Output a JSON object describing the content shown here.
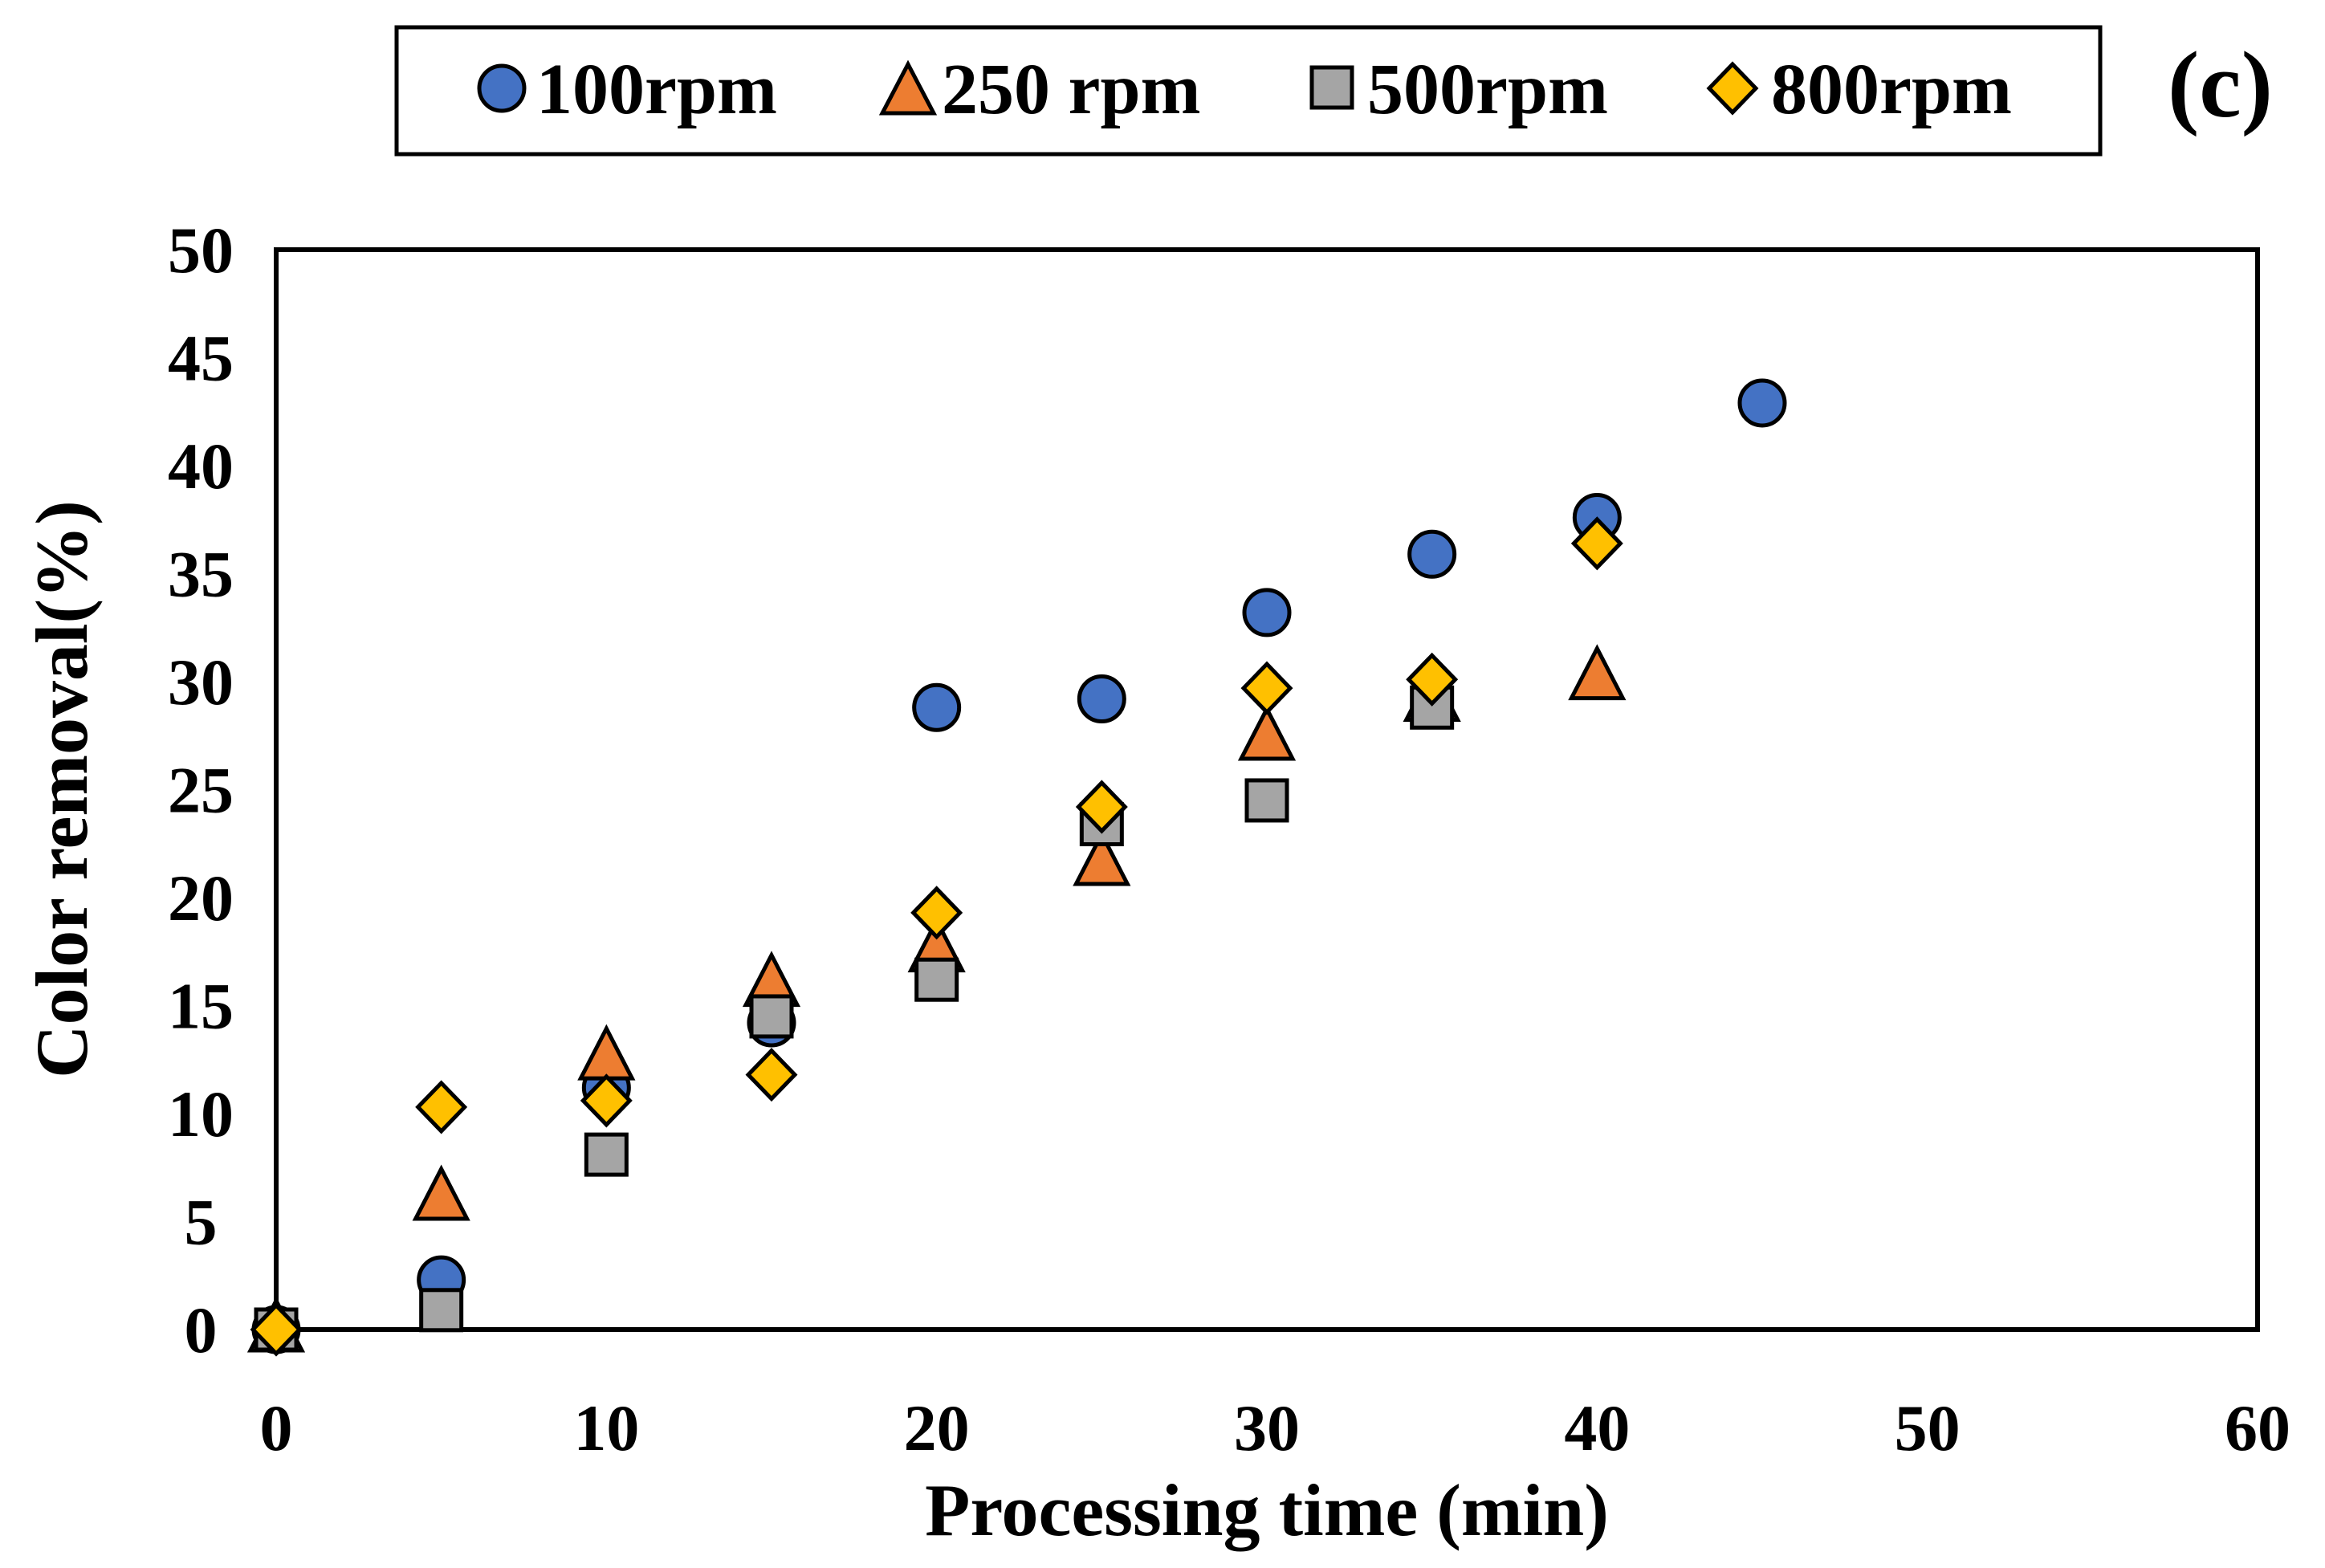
{
  "chart_data": {
    "type": "scatter",
    "panel_label": "(c)",
    "xlabel": "Processing time (min)",
    "ylabel": "Color removal(%)",
    "xlim": [
      0,
      60
    ],
    "ylim": [
      0,
      50
    ],
    "x_ticks": [
      "0",
      "10",
      "20",
      "30",
      "40",
      "50",
      "60"
    ],
    "y_ticks": [
      "0",
      "5",
      "10",
      "15",
      "20",
      "25",
      "30",
      "35",
      "40",
      "45",
      "50"
    ],
    "grid": false,
    "legend_position": "top",
    "series": [
      {
        "name": "100rpm",
        "marker": "circle",
        "color": "#4472C4",
        "x": [
          0,
          5,
          10,
          15,
          20,
          25,
          30,
          35,
          40,
          45
        ],
        "y": [
          0,
          2.3,
          11.2,
          14.2,
          28.8,
          29.2,
          33.2,
          35.9,
          37.6,
          42.9
        ]
      },
      {
        "name": "250 rpm",
        "marker": "triangle",
        "color": "#ED7D31",
        "x": [
          0,
          5,
          10,
          15,
          20,
          25,
          30,
          35,
          40
        ],
        "y": [
          0,
          6.1,
          12.6,
          16.0,
          17.6,
          21.6,
          27.4,
          29.2,
          30.2
        ]
      },
      {
        "name": "500rpm",
        "marker": "square",
        "color": "#A5A5A5",
        "x": [
          0,
          5,
          10,
          15,
          20,
          25,
          30,
          35
        ],
        "y": [
          0,
          0.9,
          8.1,
          14.5,
          16.2,
          23.4,
          24.5,
          28.8
        ]
      },
      {
        "name": "800rpm",
        "marker": "diamond",
        "color": "#FFC000",
        "x": [
          0,
          5,
          10,
          15,
          20,
          25,
          30,
          35,
          40
        ],
        "y": [
          0,
          10.3,
          10.6,
          11.8,
          19.3,
          24.2,
          29.7,
          30.1,
          36.4
        ]
      }
    ]
  }
}
